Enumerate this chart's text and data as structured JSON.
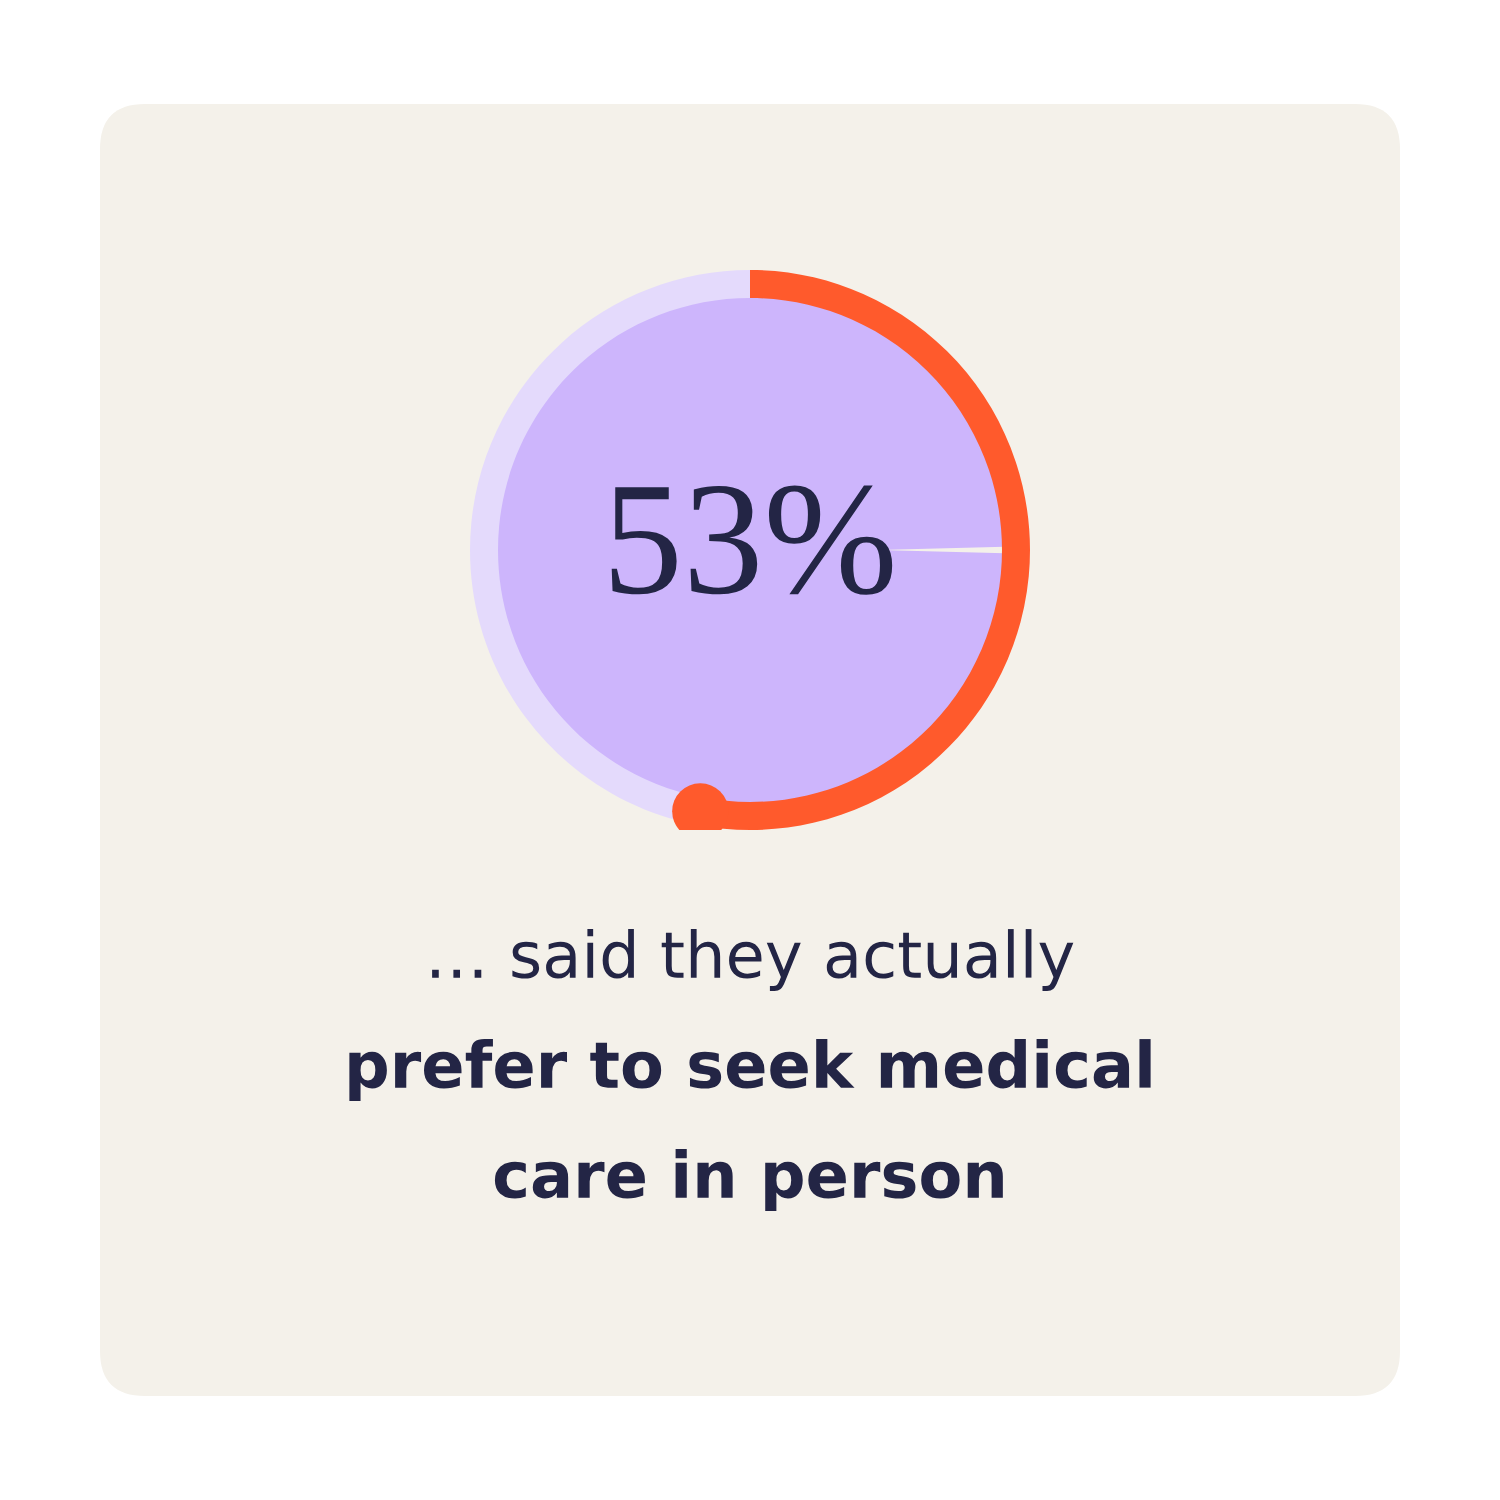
{
  "chart_data": {
    "type": "donut",
    "title": "53%",
    "categories": [
      null,
      null
    ],
    "values": [
      53,
      47
    ],
    "colors": [
      "#ff5a2c",
      "#e4dafc"
    ],
    "annotations": [
      "… said they actually",
      "prefer to seek medical",
      "care in person"
    ]
  }
}
